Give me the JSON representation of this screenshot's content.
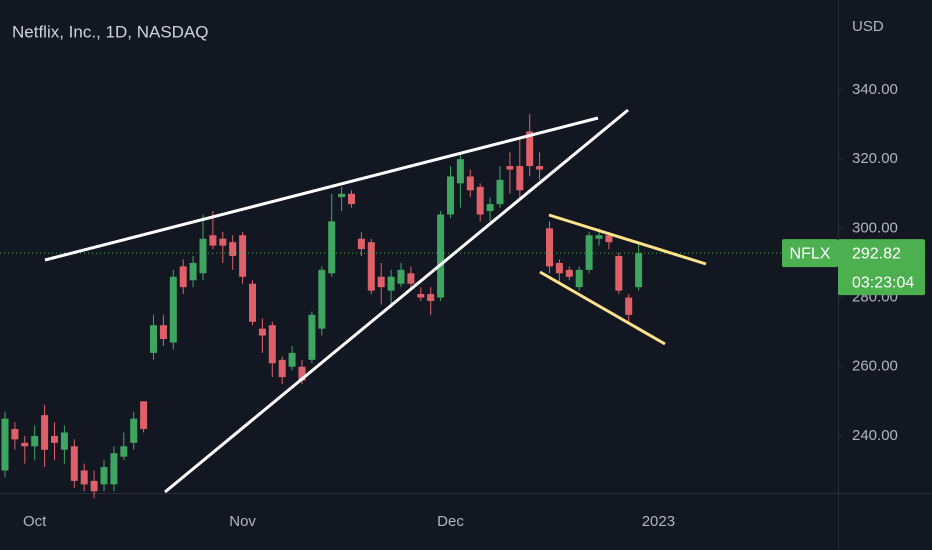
{
  "chart_data": {
    "type": "candlestick",
    "title": "Netflix, Inc., 1D, NASDAQ",
    "y_unit": "USD",
    "up_color": "#3fa661",
    "down_color": "#e0606a",
    "categories": [
      null,
      null,
      null,
      "Oct",
      null,
      null,
      null,
      null,
      null,
      null,
      null,
      null,
      null,
      null,
      null,
      null,
      null,
      null,
      null,
      null,
      null,
      null,
      null,
      null,
      "Nov",
      null,
      null,
      null,
      null,
      null,
      null,
      null,
      null,
      null,
      null,
      null,
      null,
      null,
      null,
      null,
      null,
      null,
      null,
      null,
      null,
      "Dec",
      null,
      null,
      null,
      null,
      null,
      null,
      null,
      null,
      null,
      null,
      null,
      null,
      null,
      null,
      null,
      null,
      null,
      null,
      null,
      null,
      "2023"
    ],
    "open": [
      230,
      242,
      238,
      237,
      246,
      240,
      236,
      237,
      230,
      227,
      226,
      226,
      234,
      238,
      250,
      264,
      272,
      267,
      289,
      285,
      287,
      298,
      297,
      296,
      298,
      284,
      271,
      272,
      262,
      260,
      260,
      262,
      271,
      287,
      309,
      310,
      297,
      296,
      286,
      282,
      284,
      287,
      281,
      281,
      280,
      304,
      313,
      315,
      312,
      305,
      307,
      318,
      318,
      328,
      318,
      300,
      290,
      288,
      283,
      288,
      297,
      298,
      292,
      280,
      283,
      null,
      null
    ],
    "high": [
      247,
      244,
      240,
      243,
      249,
      244,
      243,
      239,
      232,
      230,
      233,
      237,
      241,
      247,
      250,
      275,
      275,
      288,
      291,
      292,
      304,
      305,
      299,
      298,
      299,
      285,
      274,
      273,
      263,
      266,
      262,
      276,
      289,
      310,
      312,
      311,
      299,
      297,
      290,
      288,
      290,
      289,
      283,
      283,
      305,
      318,
      322,
      317,
      313,
      309,
      318,
      322,
      326,
      333,
      322,
      302,
      291,
      289,
      289,
      299,
      300,
      299,
      293,
      281,
      296,
      null,
      null
    ],
    "low": [
      228,
      236,
      232,
      233,
      231,
      233,
      232,
      225,
      224,
      222,
      224,
      224,
      233,
      236,
      241,
      262,
      266,
      265,
      281,
      283,
      285,
      294,
      290,
      288,
      284,
      272,
      264,
      257,
      255,
      259,
      255,
      261,
      269,
      286,
      305,
      306,
      292,
      281,
      278,
      277,
      283,
      282,
      279,
      275,
      279,
      303,
      306,
      309,
      302,
      302,
      306,
      310,
      308,
      315,
      314,
      287,
      284,
      285,
      282,
      287,
      295,
      294,
      281,
      273,
      282,
      null,
      null
    ],
    "close": [
      245,
      239,
      237,
      240,
      236,
      238,
      241,
      227,
      226,
      224,
      231,
      235,
      237,
      245,
      242,
      272,
      268,
      286,
      283,
      290,
      297,
      295,
      295,
      292,
      286,
      273,
      269,
      261,
      257,
      264,
      256,
      275,
      288,
      302,
      310,
      307,
      294,
      282,
      283,
      286,
      288,
      284,
      280,
      279,
      304,
      315,
      320,
      311,
      304,
      307,
      314,
      317,
      311,
      318,
      317,
      289,
      287,
      286,
      288,
      298,
      298,
      296,
      282,
      275,
      292.82,
      null,
      null
    ],
    "ylim": [
      223.5,
      366
    ],
    "yticks": [
      {
        "value": 240,
        "label": "240.00"
      },
      {
        "value": 260,
        "label": "260.00"
      },
      {
        "value": 280,
        "label": "280.00"
      },
      {
        "value": 300,
        "label": "300.00"
      },
      {
        "value": 320,
        "label": "320.00"
      },
      {
        "value": 340,
        "label": "340.00"
      }
    ],
    "last_price": {
      "symbol": "NFLX",
      "value": 292.82,
      "countdown": "03:23:04",
      "color": "#4caf50"
    }
  }
}
